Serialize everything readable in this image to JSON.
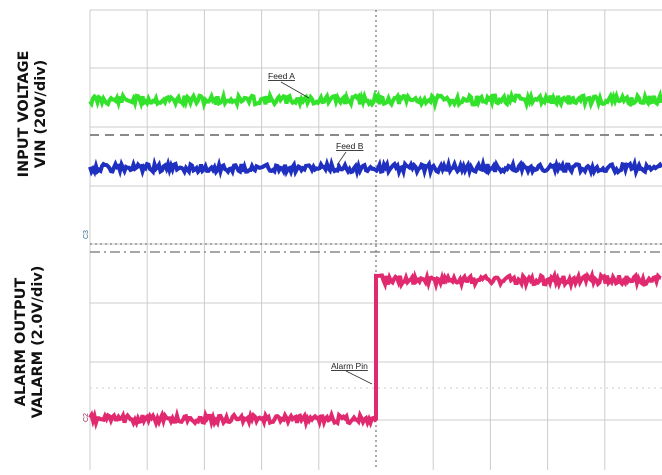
{
  "axis_labels": {
    "top": {
      "line1": "INPUT VOLTAGE",
      "line2": "VIN (20V/div)"
    },
    "bottom": {
      "line1": "ALARM OUTPUT",
      "line2": "VALARM (2.0V/div)"
    }
  },
  "chart_data": {
    "type": "line",
    "title": "",
    "grid": true,
    "x_divisions": 10,
    "y_divisions": 8,
    "series": [
      {
        "name": "Feed A",
        "color": "#33e22a",
        "values": [
          5.6,
          5.6
        ]
      },
      {
        "name": "Feed B",
        "color": "#1f2fbf",
        "values": [
          4.4,
          4.4
        ]
      },
      {
        "name": "Alarm Pin",
        "color": "#e0296e",
        "x": [
          0,
          5,
          5,
          10
        ],
        "values": [
          0.4,
          0.4,
          2.9,
          2.9
        ]
      }
    ],
    "annotations": [
      "Feed A",
      "Feed B",
      "Alarm Pin"
    ],
    "channel_markers": [
      "C3",
      "C2"
    ],
    "colors": {
      "grid": "#cccccc",
      "reference": "#8a8a8a",
      "center_axis": "#555555"
    }
  }
}
